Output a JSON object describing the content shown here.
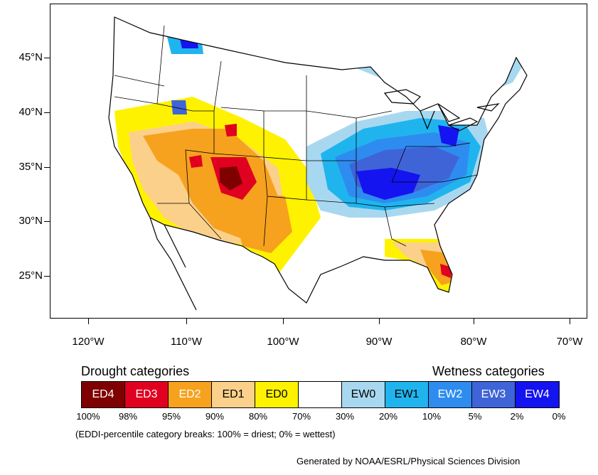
{
  "map": {
    "lat_labels": [
      "45°N",
      "40°N",
      "35°N",
      "30°N",
      "25°N"
    ],
    "lon_labels": [
      "120°W",
      "110°W",
      "100°W",
      "90°W",
      "80°W",
      "70°W"
    ]
  },
  "legend": {
    "drought_title": "Drought categories",
    "wetness_title": "Wetness categories",
    "categories": [
      {
        "label": "ED4",
        "color": "#7f0000",
        "text_color": "#ffffff"
      },
      {
        "label": "ED3",
        "color": "#e00020",
        "text_color": "#ffffff"
      },
      {
        "label": "ED2",
        "color": "#f6a21e",
        "text_color": "#ffffff"
      },
      {
        "label": "ED1",
        "color": "#fbd08a",
        "text_color": "#000000"
      },
      {
        "label": "ED0",
        "color": "#fff200",
        "text_color": "#000000"
      },
      {
        "label": "",
        "color": "#ffffff",
        "text_color": "#000000"
      },
      {
        "label": "EW0",
        "color": "#a8d8f0",
        "text_color": "#000000"
      },
      {
        "label": "EW1",
        "color": "#20b4ee",
        "text_color": "#000000"
      },
      {
        "label": "EW2",
        "color": "#2e8cf0",
        "text_color": "#ffffff"
      },
      {
        "label": "EW3",
        "color": "#3f64d8",
        "text_color": "#ffffff"
      },
      {
        "label": "EW4",
        "color": "#1414f0",
        "text_color": "#ffffff"
      }
    ],
    "breaks": [
      "100%",
      "98%",
      "95%",
      "90%",
      "80%",
      "70%",
      "30%",
      "20%",
      "10%",
      "5%",
      "2%",
      "0%"
    ],
    "note": "(EDDI-percentile category breaks: 100% = driest; 0% = wettest)"
  },
  "credit": "Generated by NOAA/ESRL/Physical Sciences Division"
}
